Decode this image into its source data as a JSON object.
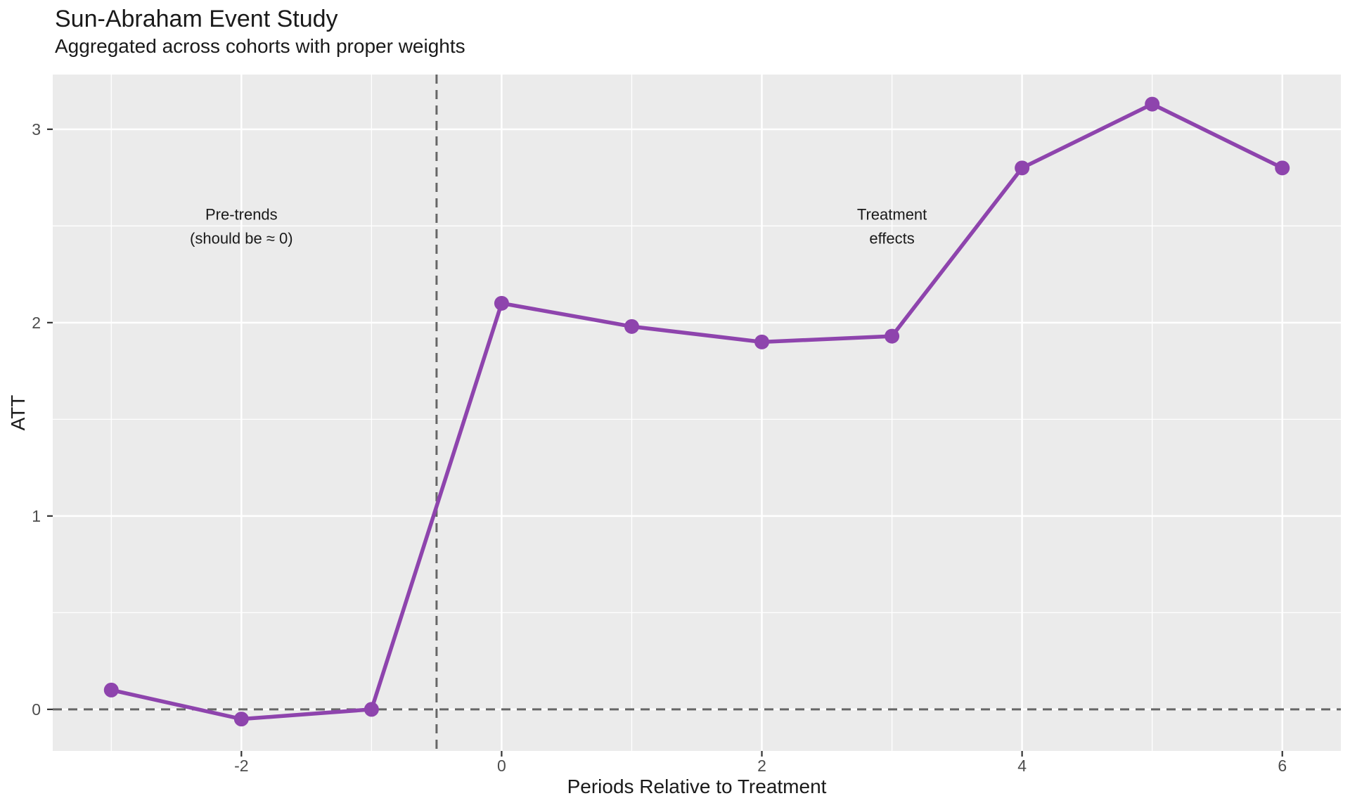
{
  "title": "Sun-Abraham Event Study",
  "subtitle": "Aggregated across cohorts with proper weights",
  "chart_data": {
    "type": "line",
    "title": "Sun-Abraham Event Study",
    "subtitle": "Aggregated across cohorts with proper weights",
    "xlabel": "Periods Relative to Treatment",
    "ylabel": "ATT",
    "x": [
      -3,
      -2,
      -1,
      0,
      1,
      2,
      3,
      4,
      5,
      6
    ],
    "series": [
      {
        "name": "ATT",
        "values": [
          0.1,
          -0.05,
          0.0,
          2.1,
          1.98,
          1.9,
          1.93,
          2.8,
          3.13,
          2.8
        ]
      }
    ],
    "xticks": [
      -2,
      0,
      2,
      4,
      6
    ],
    "yticks": [
      0,
      1,
      2,
      3
    ],
    "x_minor": [
      -3,
      -1,
      1,
      3,
      5
    ],
    "y_minor": [
      0.5,
      1.5,
      2.5
    ],
    "xlim": [
      -3.45,
      6.45
    ],
    "ylim": [
      -0.215,
      3.283
    ],
    "grid": true,
    "legend": "none",
    "reference_lines": {
      "hline": {
        "y": 0,
        "style": "dashed"
      },
      "vline": {
        "x": -0.5,
        "style": "dashed"
      }
    },
    "annotations": [
      {
        "lines": [
          "Pre-trends",
          "(should be ≈ 0)"
        ],
        "x": -2,
        "y": 2.5
      },
      {
        "lines": [
          "Treatment",
          "effects"
        ],
        "x": 3,
        "y": 2.5
      }
    ],
    "colors": {
      "series": "#8E44AD",
      "panel_bg": "#EBEBEB",
      "grid_major": "#FFFFFF",
      "grid_minor": "#FFFFFF",
      "dashed_line": "#666666",
      "tick_mark": "#333333",
      "tick_text": "#4D4D4D",
      "text": "#1A1A1A"
    }
  }
}
